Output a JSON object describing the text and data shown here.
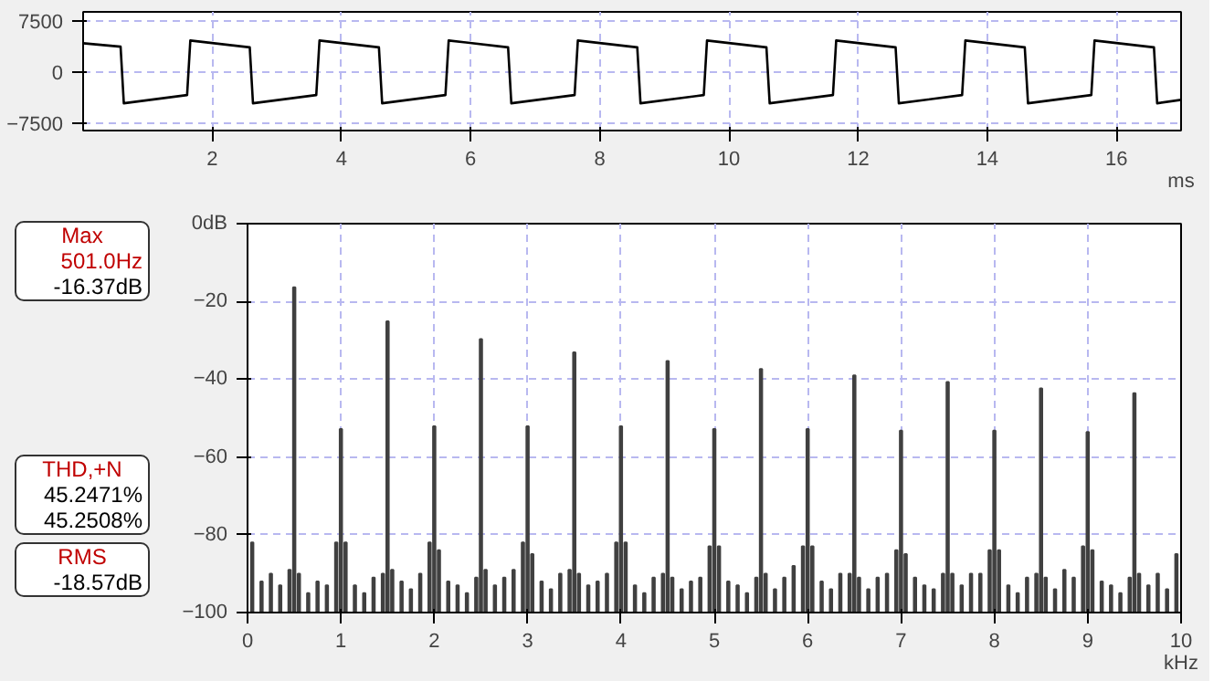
{
  "chart_data": [
    {
      "type": "line",
      "xlabel": "ms",
      "xlim": [
        0,
        17
      ],
      "ylim": [
        -8600,
        8800
      ],
      "xticks": [
        2,
        4,
        6,
        8,
        10,
        12,
        14,
        16
      ],
      "yticks": [
        7500,
        0,
        -7500
      ],
      "grid": true,
      "marker": "none",
      "line_style": "solid",
      "series": [
        {
          "color": "#000000",
          "x": [
            0,
            0.58,
            0.63,
            1.61,
            1.66,
            2.58,
            2.63,
            3.61,
            3.66,
            4.58,
            4.63,
            5.61,
            5.66,
            6.58,
            6.63,
            7.61,
            7.66,
            8.58,
            8.63,
            9.61,
            9.66,
            10.58,
            10.63,
            11.61,
            11.66,
            12.58,
            12.63,
            13.61,
            13.66,
            14.58,
            14.63,
            15.61,
            15.66,
            16.58,
            16.63,
            17
          ],
          "values": [
            4200,
            3700,
            -4600,
            -3400,
            4600,
            3600,
            -4600,
            -3400,
            4600,
            3600,
            -4600,
            -3400,
            4600,
            3600,
            -4600,
            -3400,
            4600,
            3600,
            -4600,
            -3400,
            4600,
            3600,
            -4600,
            -3400,
            4600,
            3600,
            -4600,
            -3400,
            4600,
            3600,
            -4600,
            -3400,
            4600,
            3600,
            -4600,
            -4100
          ]
        }
      ]
    },
    {
      "type": "bar",
      "xlabel": "kHz",
      "xlim": [
        0,
        10
      ],
      "ylim": [
        -100,
        0
      ],
      "xticks": [
        0,
        1,
        2,
        3,
        4,
        5,
        6,
        7,
        8,
        9,
        10
      ],
      "yticks": [
        {
          "value": 0,
          "label": "0dB"
        },
        -20,
        -40,
        -60,
        -80,
        -100
      ],
      "grid": true,
      "annotations": [
        "Max\n501.0Hz\n-16.37dB",
        "THD,+N\n45.2471%\n45.2508%",
        "RMS\n-18.57dB"
      ],
      "series": [
        {
          "color": "#404040",
          "x": [
            0.05,
            0.15,
            0.25,
            0.35,
            0.45,
            0.5,
            0.55,
            0.65,
            0.75,
            0.85,
            0.95,
            1.0,
            1.05,
            1.15,
            1.25,
            1.35,
            1.45,
            1.5,
            1.55,
            1.65,
            1.75,
            1.85,
            1.95,
            2.0,
            2.05,
            2.15,
            2.25,
            2.35,
            2.45,
            2.5,
            2.55,
            2.65,
            2.75,
            2.85,
            2.95,
            3.0,
            3.05,
            3.15,
            3.25,
            3.35,
            3.45,
            3.5,
            3.55,
            3.65,
            3.75,
            3.85,
            3.95,
            4.0,
            4.05,
            4.15,
            4.25,
            4.35,
            4.45,
            4.5,
            4.55,
            4.65,
            4.75,
            4.85,
            4.95,
            5.0,
            5.05,
            5.15,
            5.25,
            5.35,
            5.45,
            5.5,
            5.55,
            5.65,
            5.75,
            5.85,
            5.95,
            6.0,
            6.05,
            6.15,
            6.25,
            6.35,
            6.45,
            6.5,
            6.55,
            6.65,
            6.75,
            6.85,
            6.95,
            7.0,
            7.05,
            7.15,
            7.25,
            7.35,
            7.45,
            7.5,
            7.55,
            7.65,
            7.75,
            7.85,
            7.95,
            8.0,
            8.05,
            8.15,
            8.25,
            8.35,
            8.45,
            8.5,
            8.55,
            8.65,
            8.75,
            8.85,
            8.95,
            9.0,
            9.05,
            9.15,
            9.25,
            9.35,
            9.45,
            9.5,
            9.55,
            9.65,
            9.75,
            9.85,
            9.95
          ],
          "base": [
            -100,
            -100,
            -100,
            -100,
            -100,
            -100,
            -100,
            -100,
            -100,
            -100,
            -100,
            -100,
            -100,
            -100,
            -100,
            -100,
            -100,
            -100,
            -100,
            -100,
            -100,
            -100,
            -100,
            -100,
            -100,
            -100,
            -100,
            -100,
            -100,
            -100,
            -100,
            -100,
            -100,
            -100,
            -100,
            -100,
            -100,
            -100,
            -100,
            -100,
            -100,
            -100,
            -100,
            -100,
            -100,
            -100,
            -100,
            -100,
            -100,
            -100,
            -100,
            -100,
            -100,
            -100,
            -100,
            -100,
            -100,
            -100,
            -100,
            -100,
            -100,
            -100,
            -100,
            -100,
            -100,
            -100,
            -100,
            -100,
            -100,
            -100,
            -100,
            -100,
            -100,
            -100,
            -100,
            -100,
            -100,
            -100,
            -100,
            -100,
            -100,
            -100,
            -100,
            -100,
            -100,
            -100,
            -100,
            -100,
            -100,
            -100,
            -100,
            -100,
            -100,
            -100,
            -100,
            -100,
            -100,
            -100,
            -100,
            -100,
            -100,
            -100,
            -100,
            -100,
            -100,
            -100,
            -100,
            -100,
            -100,
            -100,
            -100,
            -100,
            -100,
            -100,
            -100,
            -100,
            -100,
            -100,
            -100
          ],
          "values": [
            18,
            8,
            10,
            7,
            11,
            83.6,
            10,
            5,
            8,
            7,
            18,
            47.2,
            18,
            7,
            5,
            9,
            10,
            74.9,
            11,
            8,
            6,
            10,
            18,
            47.9,
            16,
            8,
            7,
            5,
            9,
            70.3,
            11,
            7,
            9,
            11,
            18,
            47.9,
            15,
            8,
            6,
            10,
            11,
            66.9,
            10,
            7,
            8,
            10,
            18,
            47.9,
            18,
            7,
            5,
            9,
            10,
            64.7,
            9,
            6,
            8,
            9,
            17,
            47.2,
            17,
            8,
            7,
            5,
            9,
            62.6,
            10,
            6,
            9,
            12,
            17,
            47.2,
            17,
            8,
            6,
            10,
            10,
            61,
            9,
            6,
            9,
            10,
            16,
            46.8,
            15,
            9,
            7,
            6,
            10,
            59.3,
            10,
            7,
            10,
            10,
            16,
            46.8,
            16,
            7,
            5,
            9,
            10,
            57.6,
            9,
            6,
            11,
            9,
            17,
            46.4,
            16,
            8,
            7,
            5,
            9,
            56.4,
            10,
            7,
            10,
            6,
            15
          ]
        }
      ]
    }
  ]
}
